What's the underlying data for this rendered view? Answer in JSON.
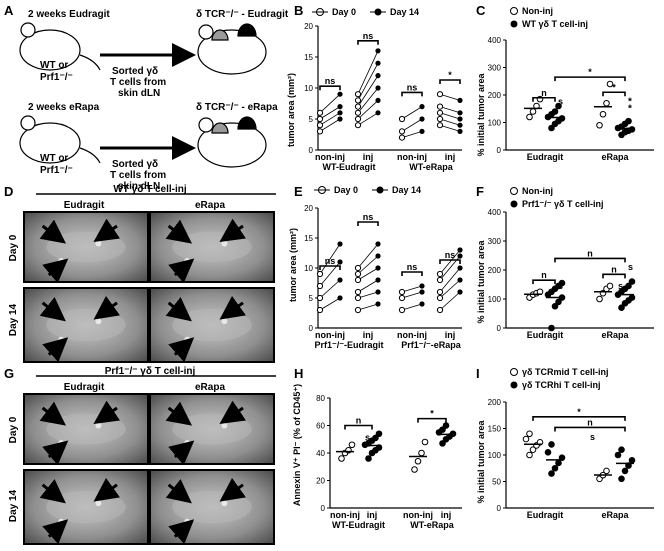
{
  "panels": {
    "A": {
      "label": "A",
      "row1": {
        "left": "2 weeks Eudragit",
        "right": "δ TCR⁻/⁻ - Eudragit",
        "mouse": "WT or",
        "mouse2": "Prf1⁻/⁻",
        "arrow": [
          "Sorted γδ",
          "T cells from",
          "skin dLN"
        ]
      },
      "row2": {
        "left": "2 weeks eRapa",
        "right": "δ TCR⁻/⁻ - eRapa",
        "mouse": "WT or",
        "mouse2": "Prf1⁻/⁻",
        "arrow": [
          "Sorted γδ",
          "T cells from",
          "skin dLN"
        ]
      }
    },
    "B": {
      "label": "B",
      "legend": [
        "Day 0",
        "Day 14"
      ],
      "ylabel": "tumor area (mm²)",
      "yticks": [
        "0",
        "5",
        "10",
        "15",
        "20"
      ],
      "xticks": [
        "non-inj",
        "inj",
        "non-inj",
        "inj"
      ],
      "groups": [
        "WT-Eudragit",
        "WT-eRapa"
      ],
      "sig": [
        "ns",
        "ns",
        "ns",
        "*"
      ]
    },
    "C": {
      "label": "C",
      "legend": [
        "Non-inj",
        "WT γδ T cell-inj"
      ],
      "ylabel": "% initial tumor area",
      "yticks": [
        "0",
        "100",
        "200",
        "300",
        "400"
      ],
      "xticks": [
        "Eudragit",
        "eRapa"
      ],
      "sig": [
        "n",
        "s",
        "*",
        "*",
        "*",
        "*"
      ]
    },
    "D": {
      "label": "D",
      "title": "WT γδ T cell-inj",
      "cols": [
        "Eudragit",
        "eRapa"
      ],
      "rows": [
        "Day 0",
        "Day 14"
      ]
    },
    "E": {
      "label": "E",
      "legend": [
        "Day 0",
        "Day 14"
      ],
      "ylabel": "tumor area (mm²)",
      "yticks": [
        "0",
        "5",
        "10",
        "15",
        "20"
      ],
      "xticks": [
        "non-inj",
        "inj",
        "non-inj",
        "inj"
      ],
      "groups": [
        "Prf1⁻/⁻-Eudragit",
        "Prf1⁻/⁻-eRapa"
      ],
      "sig": [
        "ns",
        "ns",
        "ns",
        "ns"
      ]
    },
    "F": {
      "label": "F",
      "legend": [
        "Non-inj",
        "Prf1⁻/⁻ γδ T cell-inj"
      ],
      "ylabel": "% initial tumor area",
      "yticks": [
        "0",
        "100",
        "200",
        "300",
        "400"
      ],
      "xticks": [
        "Eudragit",
        "eRapa"
      ],
      "sig": [
        "n",
        "s",
        "n",
        "s",
        "n",
        "s",
        "n",
        "s"
      ]
    },
    "G": {
      "label": "G",
      "title": "Prf1⁻/⁻ γδ T cell-inj",
      "cols": [
        "Eudragit",
        "eRapa"
      ],
      "rows": [
        "Day 0",
        "Day 14"
      ]
    },
    "H": {
      "label": "H",
      "ylabel": "Annexin V⁺ PI⁻ (% of CD45⁺)",
      "yticks": [
        "0",
        "20",
        "40",
        "60",
        "80"
      ],
      "xticks": [
        "non-inj",
        "inj",
        "non-inj",
        "inj"
      ],
      "groups": [
        "WT-Eudragit",
        "WT-eRapa"
      ],
      "sig": [
        "n",
        "s",
        "*"
      ]
    },
    "I": {
      "label": "I",
      "legend": [
        "γδ TCRmid T cell-inj",
        "γδ TCRhi T cell-inj"
      ],
      "ylabel": "% initial tumor area",
      "yticks": [
        "0",
        "50",
        "100",
        "150",
        "200"
      ],
      "xticks": [
        "Eudragit",
        "eRapa"
      ],
      "sig": [
        "*",
        "n",
        "s"
      ]
    }
  },
  "chart_data": [
    {
      "panel": "B",
      "type": "scatter",
      "ylim": [
        0,
        20
      ],
      "series": [
        {
          "name": "Day 0",
          "x": [
            "WT-Eudragit non-inj",
            "WT-Eudragit non-inj",
            "WT-Eudragit non-inj",
            "WT-Eudragit non-inj",
            "WT-Eudragit inj",
            "WT-Eudragit inj",
            "WT-Eudragit inj",
            "WT-Eudragit inj",
            "WT-Eudragit inj",
            "WT-Eudragit inj",
            "WT-eRapa non-inj",
            "WT-eRapa non-inj",
            "WT-eRapa non-inj",
            "WT-eRapa inj",
            "WT-eRapa inj",
            "WT-eRapa inj",
            "WT-eRapa inj",
            "WT-eRapa inj"
          ],
          "values": [
            3,
            4,
            5,
            6,
            4,
            5,
            6,
            7,
            8,
            9,
            2,
            3,
            5,
            4,
            5,
            6,
            7,
            9
          ]
        },
        {
          "name": "Day 14",
          "x": [
            "WT-Eudragit non-inj",
            "WT-Eudragit non-inj",
            "WT-Eudragit non-inj",
            "WT-Eudragit non-inj",
            "WT-Eudragit inj",
            "WT-Eudragit inj",
            "WT-Eudragit inj",
            "WT-Eudragit inj",
            "WT-Eudragit inj",
            "WT-Eudragit inj",
            "WT-eRapa non-inj",
            "WT-eRapa non-inj",
            "WT-eRapa non-inj",
            "WT-eRapa inj",
            "WT-eRapa inj",
            "WT-eRapa inj",
            "WT-eRapa inj",
            "WT-eRapa inj"
          ],
          "values": [
            5,
            6,
            7,
            9,
            6,
            8,
            10,
            12,
            14,
            16,
            3,
            5,
            7,
            3,
            4,
            5,
            6,
            8
          ]
        }
      ]
    },
    {
      "panel": "C",
      "type": "scatter",
      "ylim": [
        0,
        400
      ],
      "series": [
        {
          "name": "Non-inj",
          "categories": [
            "Eudragit",
            "Eudragit",
            "Eudragit",
            "Eudragit",
            "eRapa",
            "eRapa",
            "eRapa",
            "eRapa"
          ],
          "values": [
            120,
            140,
            160,
            185,
            90,
            130,
            170,
            240
          ]
        },
        {
          "name": "WT γδ T cell-inj",
          "categories": [
            "Eudragit",
            "Eudragit",
            "Eudragit",
            "Eudragit",
            "Eudragit",
            "Eudragit",
            "Eudragit",
            "Eudragit",
            "eRapa",
            "eRapa",
            "eRapa",
            "eRapa",
            "eRapa",
            "eRapa",
            "eRapa",
            "eRapa"
          ],
          "values": [
            80,
            95,
            105,
            115,
            120,
            130,
            140,
            160,
            55,
            65,
            70,
            75,
            80,
            85,
            95,
            105
          ]
        }
      ]
    },
    {
      "panel": "E",
      "type": "scatter",
      "ylim": [
        0,
        20
      ],
      "series": [
        {
          "name": "Day 0",
          "values": [
            3,
            5,
            7,
            9,
            3,
            5,
            6,
            8,
            9,
            10,
            3,
            5,
            6,
            3,
            5,
            6,
            8,
            9
          ]
        },
        {
          "name": "Day 14",
          "values": [
            5,
            8,
            11,
            14,
            4,
            6,
            8,
            10,
            12,
            14,
            4,
            6,
            7,
            6,
            8,
            10,
            12,
            13
          ]
        }
      ]
    },
    {
      "panel": "F",
      "type": "scatter",
      "ylim": [
        0,
        400
      ],
      "series": [
        {
          "name": "Non-inj",
          "categories": [
            "Eudragit",
            "Eudragit",
            "Eudragit",
            "Eudragit",
            "eRapa",
            "eRapa",
            "eRapa",
            "eRapa"
          ],
          "values": [
            105,
            115,
            120,
            125,
            100,
            120,
            135,
            145
          ]
        },
        {
          "name": "Prf1⁻/⁻ γδ T cell-inj",
          "categories": [
            "Eudragit",
            "Eudragit",
            "Eudragit",
            "Eudragit",
            "Eudragit",
            "Eudragit",
            "Eudragit",
            "Eudragit",
            "Eudragit",
            "eRapa",
            "eRapa",
            "eRapa",
            "eRapa",
            "eRapa",
            "eRapa",
            "eRapa",
            "eRapa",
            "eRapa"
          ],
          "values": [
            0,
            75,
            90,
            105,
            115,
            125,
            135,
            145,
            155,
            70,
            85,
            95,
            105,
            115,
            125,
            135,
            145,
            160
          ]
        }
      ]
    },
    {
      "panel": "H",
      "type": "scatter",
      "ylim": [
        0,
        80
      ],
      "series": [
        {
          "name": "non-inj",
          "categories": [
            "WT-Eudragit",
            "WT-Eudragit",
            "WT-Eudragit",
            "WT-Eudragit",
            "WT-eRapa",
            "WT-eRapa",
            "WT-eRapa",
            "WT-eRapa"
          ],
          "values": [
            36,
            40,
            42,
            46,
            28,
            34,
            40,
            48
          ]
        },
        {
          "name": "inj",
          "categories": [
            "WT-Eudragit",
            "WT-Eudragit",
            "WT-Eudragit",
            "WT-Eudragit",
            "WT-Eudragit",
            "WT-Eudragit",
            "WT-Eudragit",
            "WT-Eudragit",
            "WT-Eudragit",
            "WT-eRapa",
            "WT-eRapa",
            "WT-eRapa",
            "WT-eRapa",
            "WT-eRapa",
            "WT-eRapa",
            "WT-eRapa"
          ],
          "values": [
            36,
            40,
            42,
            44,
            46,
            47,
            49,
            51,
            54,
            47,
            50,
            52,
            54,
            55,
            57,
            60
          ]
        }
      ]
    },
    {
      "panel": "I",
      "type": "scatter",
      "ylim": [
        0,
        200
      ],
      "series": [
        {
          "name": "γδ TCRmid T cell-inj",
          "categories": [
            "Eudragit",
            "Eudragit",
            "Eudragit",
            "Eudragit",
            "Eudragit",
            "Eudragit",
            "eRapa",
            "eRapa",
            "eRapa"
          ],
          "values": [
            100,
            110,
            118,
            124,
            130,
            140,
            55,
            62,
            70
          ]
        },
        {
          "name": "γδ TCRhi T cell-inj",
          "categories": [
            "Eudragit",
            "Eudragit",
            "Eudragit",
            "Eudragit",
            "Eudragit",
            "Eudragit",
            "eRapa",
            "eRapa",
            "eRapa",
            "eRapa",
            "eRapa",
            "eRapa"
          ],
          "values": [
            65,
            75,
            85,
            95,
            105,
            120,
            55,
            70,
            80,
            90,
            100,
            110
          ]
        }
      ]
    }
  ]
}
